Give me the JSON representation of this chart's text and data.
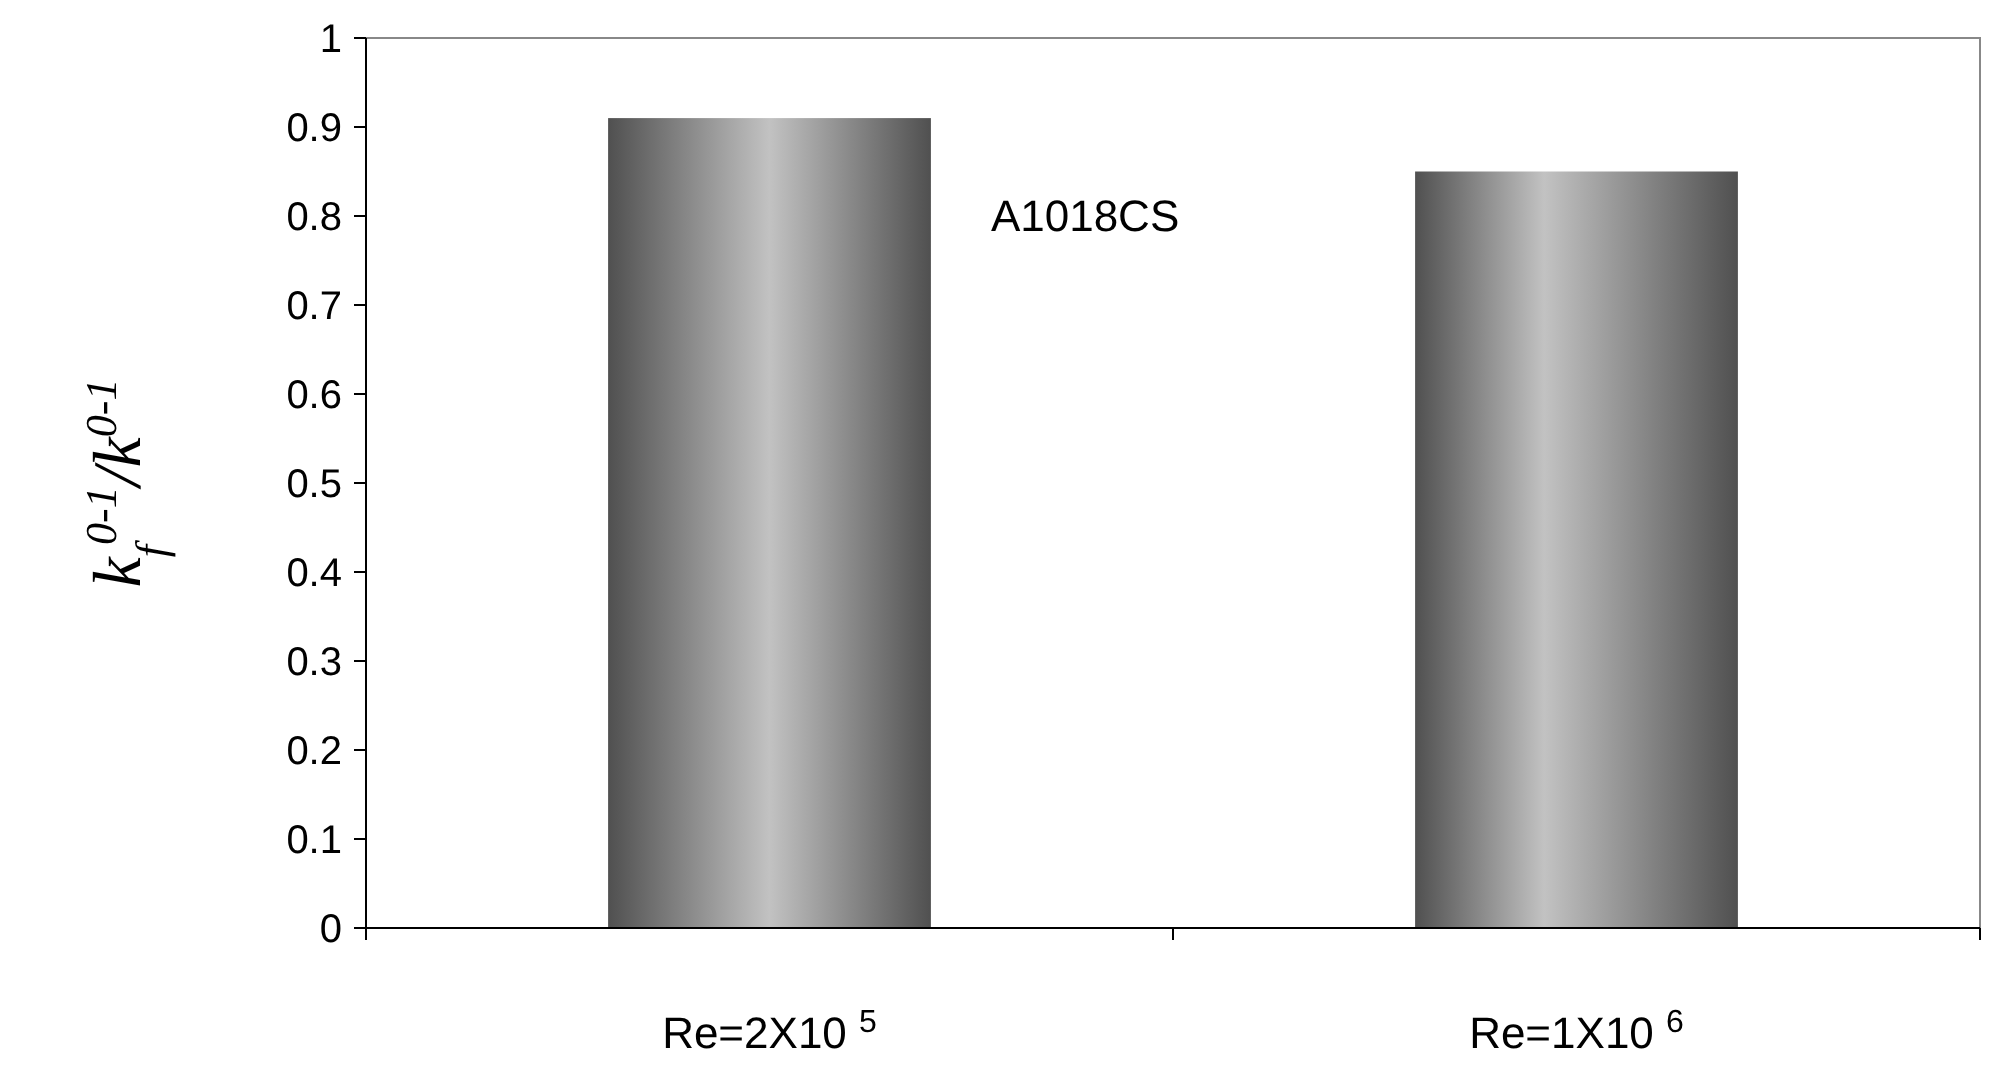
{
  "chart_data": {
    "type": "bar",
    "ylabel": "k$_{f}$$^{0-1}$/k$^{0-1}$",
    "categories": [
      "Re=2X10 $^{5}$",
      "Re=1X10 $^{6}$"
    ],
    "values": [
      0.91,
      0.85
    ],
    "color": "#7a7a7a",
    "ylim": [
      0,
      1
    ],
    "yticks": [
      0,
      0.1,
      0.2,
      0.3,
      0.4,
      0.5,
      0.6,
      0.7,
      0.8,
      0.9,
      1
    ],
    "grid": false,
    "annotations": [
      "A1018CS"
    ]
  }
}
